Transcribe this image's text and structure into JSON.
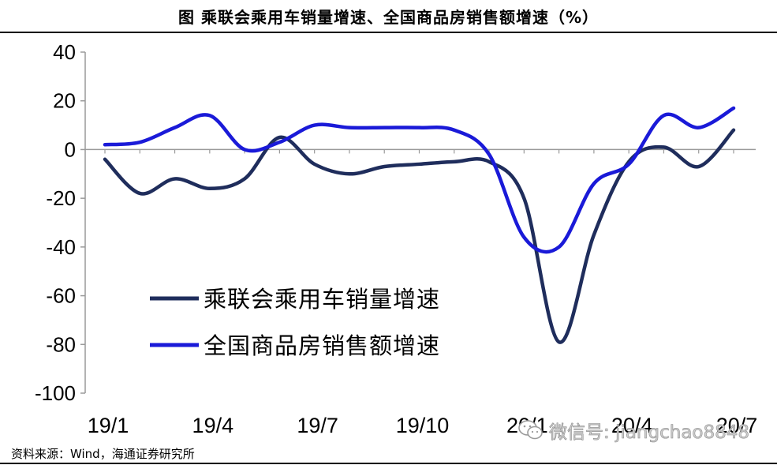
{
  "page": {
    "title": "图  乘联会乘用车销量增速、全国商品房销售额增速（%）",
    "source": "资料来源：Wind，海通证券研究所",
    "watermark": "微信号: jiangchao8848"
  },
  "chart_data": {
    "type": "line",
    "x": [
      "19/1",
      "19/2",
      "19/3",
      "19/4",
      "19/5",
      "19/6",
      "19/7",
      "19/8",
      "19/9",
      "19/10",
      "19/11",
      "19/12",
      "20/1",
      "20/2",
      "20/3",
      "20/4",
      "20/5",
      "20/6",
      "20/7"
    ],
    "tick_labels": [
      "19/1",
      "19/4",
      "19/7",
      "19/10",
      "20/1",
      "20/4",
      "20/7"
    ],
    "tick_positions": [
      "19/1",
      "19/4",
      "19/7",
      "19/10",
      "20/1",
      "20/4",
      "20/7"
    ],
    "ylim": [
      -100,
      40
    ],
    "yticks": [
      "40",
      "20",
      "0",
      "-20",
      "-40",
      "-60",
      "-80",
      "-100"
    ],
    "ytick_values": [
      40,
      20,
      0,
      -20,
      -40,
      -60,
      -80,
      -100
    ],
    "legend_position": "center-left",
    "series": [
      {
        "name": "乘联会乘用车销量增速",
        "color": "#1f2d5c",
        "values": [
          -4,
          -18,
          -12,
          -16,
          -12,
          5,
          -6,
          -10,
          -7,
          -6,
          -5,
          -5,
          -20,
          -79,
          -35,
          -5,
          1,
          -7,
          8
        ]
      },
      {
        "name": "全国商品房销售额增速",
        "color": "#1a1ad8",
        "values": [
          2,
          3,
          9,
          14,
          0,
          3,
          10,
          9,
          9,
          9,
          8,
          -2,
          -36,
          -40,
          -14,
          -6,
          14,
          9,
          17
        ]
      }
    ]
  }
}
